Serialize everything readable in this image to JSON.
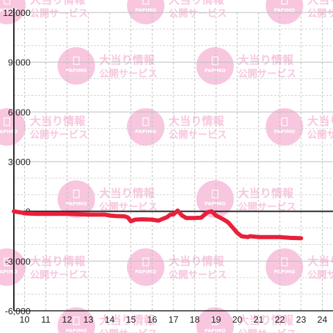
{
  "watermark": {
    "brand": "PAPIMO",
    "line1": "大当り情報",
    "line2": "公開サービス",
    "color": "#f8c6df"
  },
  "chart_data": {
    "type": "line",
    "title": "",
    "xlabel": "",
    "ylabel": "",
    "x_ticks": [
      "10",
      "11",
      "12",
      "13",
      "14",
      "15",
      "16",
      "17",
      "18",
      "19",
      "20",
      "21",
      "22",
      "23",
      "24"
    ],
    "y_ticks": [
      "12,000",
      "9,000",
      "6,000",
      "3,000",
      "0",
      "-3,000",
      "-6,000"
    ],
    "xlim": [
      9.5,
      24.5
    ],
    "ylim": [
      -6000,
      12000
    ],
    "grid": true,
    "line_color": "#e8203a",
    "series": [
      {
        "x": [
          9.5,
          9.9,
          10.0,
          10.5,
          11.0,
          11.5,
          12.0,
          12.5,
          13.0,
          13.5,
          13.8,
          14.0,
          14.3,
          14.7,
          14.85,
          15.0,
          15.2,
          15.5,
          16.0,
          16.3,
          16.5,
          16.7,
          16.85,
          17.0,
          17.2,
          17.4,
          17.6,
          18.0,
          18.3,
          18.6,
          18.8,
          19.0,
          19.3,
          19.5,
          19.6,
          19.8,
          20.0,
          20.2,
          20.5,
          20.6,
          21.0,
          21.5,
          22.0,
          22.5,
          23.0
        ],
        "y": [
          0,
          -80,
          -120,
          -150,
          -150,
          -150,
          -150,
          -170,
          -200,
          -200,
          -200,
          -250,
          -280,
          -300,
          -360,
          -600,
          -500,
          -480,
          -500,
          -560,
          -450,
          -350,
          -200,
          -180,
          50,
          -250,
          -400,
          -400,
          -380,
          -50,
          0,
          -250,
          -450,
          -600,
          -700,
          -1000,
          -1300,
          -1500,
          -1550,
          -1500,
          -1550,
          -1550,
          -1550,
          -1600,
          -1620
        ]
      }
    ]
  }
}
